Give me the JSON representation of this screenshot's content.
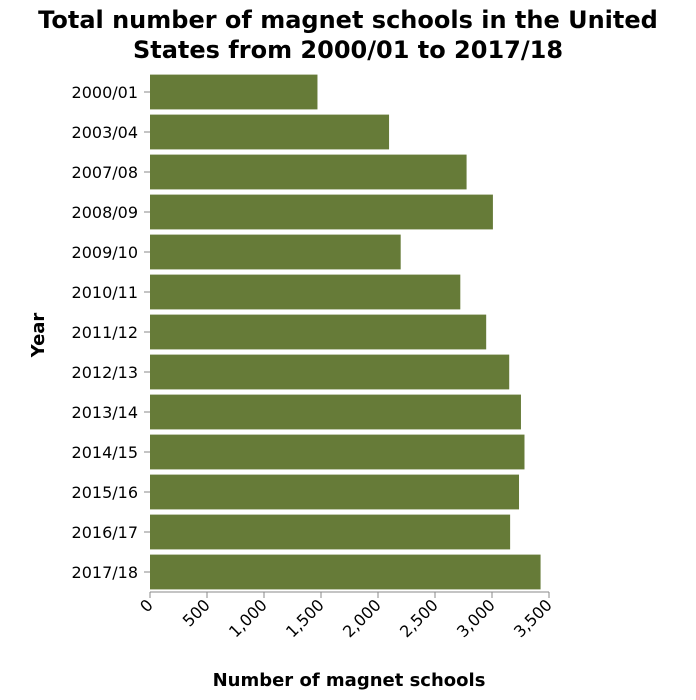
{
  "chart_data": {
    "type": "bar",
    "orientation": "horizontal",
    "title_lines": [
      "Total number of magnet schools in the United",
      "States from 2000/01 to 2017/18"
    ],
    "xlabel": "Number of magnet schools",
    "ylabel": "Year",
    "categories": [
      "2000/01",
      "2003/04",
      "2007/08",
      "2008/09",
      "2009/10",
      "2010/11",
      "2011/12",
      "2012/13",
      "2013/14",
      "2014/15",
      "2015/16",
      "2016/17",
      "2017/18"
    ],
    "values": [
      1469,
      2097,
      2777,
      3008,
      2199,
      2722,
      2949,
      3151,
      3254,
      3285,
      3237,
      3159,
      3426
    ],
    "xlim": [
      0,
      3500
    ],
    "xticks": [
      0,
      500,
      1000,
      1500,
      2000,
      2500,
      3000,
      3500
    ],
    "xtick_labels": [
      "0",
      "500",
      "1,000",
      "1,500",
      "2,000",
      "2,500",
      "3,000",
      "3,500"
    ],
    "bar_color": "#667b38",
    "grid": false,
    "legend": "none"
  }
}
